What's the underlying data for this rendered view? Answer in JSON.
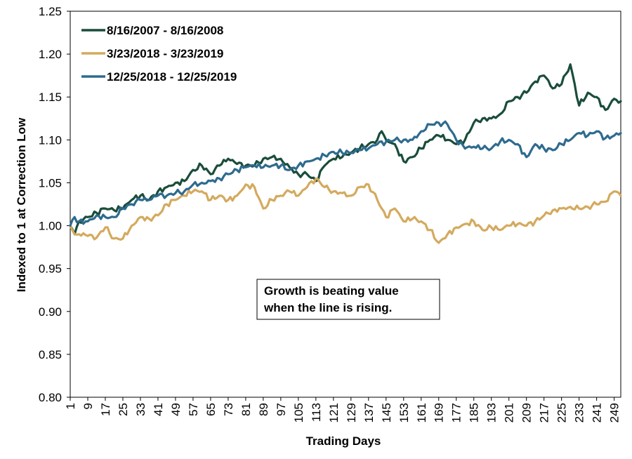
{
  "chart_data": {
    "type": "line",
    "xlabel": "Trading Days",
    "ylabel": "Indexed to 1 at Correction Low",
    "ylim": [
      0.8,
      1.25
    ],
    "xlim": [
      1,
      252
    ],
    "y_ticks": [
      "0.80",
      "0.85",
      "0.90",
      "0.95",
      "1.00",
      "1.05",
      "1.10",
      "1.15",
      "1.20",
      "1.25"
    ],
    "x_ticks": [
      "1",
      "9",
      "17",
      "25",
      "33",
      "41",
      "49",
      "57",
      "65",
      "73",
      "81",
      "89",
      "97",
      "105",
      "113",
      "121",
      "129",
      "137",
      "145",
      "153",
      "161",
      "169",
      "177",
      "185",
      "193",
      "201",
      "209",
      "217",
      "225",
      "233",
      "241",
      "249"
    ],
    "annotation": [
      "Growth is beating value",
      "when the line is rising."
    ],
    "legend_position": "top-left",
    "series": [
      {
        "name": "8/16/2007 - 8/16/2008",
        "color": "#1a4d3a",
        "points": [
          [
            1,
            1.0
          ],
          [
            3,
            0.99
          ],
          [
            5,
            1.005
          ],
          [
            9,
            1.01
          ],
          [
            13,
            1.015
          ],
          [
            17,
            1.02
          ],
          [
            21,
            1.018
          ],
          [
            25,
            1.02
          ],
          [
            29,
            1.03
          ],
          [
            33,
            1.035
          ],
          [
            37,
            1.03
          ],
          [
            41,
            1.04
          ],
          [
            45,
            1.045
          ],
          [
            49,
            1.05
          ],
          [
            53,
            1.052
          ],
          [
            57,
            1.065
          ],
          [
            61,
            1.07
          ],
          [
            65,
            1.06
          ],
          [
            69,
            1.07
          ],
          [
            73,
            1.078
          ],
          [
            77,
            1.072
          ],
          [
            81,
            1.07
          ],
          [
            85,
            1.07
          ],
          [
            89,
            1.078
          ],
          [
            93,
            1.08
          ],
          [
            97,
            1.078
          ],
          [
            101,
            1.068
          ],
          [
            105,
            1.06
          ],
          [
            109,
            1.06
          ],
          [
            113,
            1.052
          ],
          [
            117,
            1.07
          ],
          [
            121,
            1.078
          ],
          [
            125,
            1.08
          ],
          [
            129,
            1.085
          ],
          [
            133,
            1.09
          ],
          [
            137,
            1.095
          ],
          [
            141,
            1.1
          ],
          [
            143,
            1.11
          ],
          [
            145,
            1.1
          ],
          [
            149,
            1.095
          ],
          [
            153,
            1.075
          ],
          [
            157,
            1.08
          ],
          [
            161,
            1.09
          ],
          [
            165,
            1.1
          ],
          [
            169,
            1.105
          ],
          [
            173,
            1.1
          ],
          [
            177,
            1.095
          ],
          [
            181,
            1.1
          ],
          [
            185,
            1.12
          ],
          [
            189,
            1.125
          ],
          [
            193,
            1.125
          ],
          [
            197,
            1.13
          ],
          [
            201,
            1.145
          ],
          [
            205,
            1.15
          ],
          [
            209,
            1.155
          ],
          [
            213,
            1.168
          ],
          [
            217,
            1.175
          ],
          [
            221,
            1.16
          ],
          [
            225,
            1.165
          ],
          [
            229,
            1.188
          ],
          [
            233,
            1.14
          ],
          [
            237,
            1.155
          ],
          [
            241,
            1.15
          ],
          [
            245,
            1.135
          ],
          [
            249,
            1.148
          ],
          [
            252,
            1.145
          ]
        ]
      },
      {
        "name": "3/23/2018 - 3/23/2019",
        "color": "#d4aa5e",
        "points": [
          [
            1,
            1.0
          ],
          [
            3,
            0.99
          ],
          [
            5,
            0.99
          ],
          [
            9,
            0.988
          ],
          [
            13,
            0.986
          ],
          [
            17,
            0.998
          ],
          [
            21,
            0.985
          ],
          [
            25,
            0.985
          ],
          [
            29,
            1.0
          ],
          [
            33,
            1.01
          ],
          [
            37,
            1.008
          ],
          [
            41,
            1.012
          ],
          [
            45,
            1.025
          ],
          [
            49,
            1.03
          ],
          [
            53,
            1.035
          ],
          [
            57,
            1.04
          ],
          [
            61,
            1.04
          ],
          [
            65,
            1.03
          ],
          [
            69,
            1.035
          ],
          [
            73,
            1.03
          ],
          [
            77,
            1.035
          ],
          [
            81,
            1.048
          ],
          [
            85,
            1.045
          ],
          [
            89,
            1.02
          ],
          [
            93,
            1.03
          ],
          [
            97,
            1.035
          ],
          [
            101,
            1.04
          ],
          [
            105,
            1.035
          ],
          [
            109,
            1.045
          ],
          [
            113,
            1.055
          ],
          [
            117,
            1.045
          ],
          [
            121,
            1.04
          ],
          [
            125,
            1.038
          ],
          [
            129,
            1.035
          ],
          [
            133,
            1.045
          ],
          [
            137,
            1.048
          ],
          [
            141,
            1.03
          ],
          [
            145,
            1.01
          ],
          [
            149,
            1.02
          ],
          [
            153,
            1.005
          ],
          [
            157,
            1.008
          ],
          [
            161,
            1.005
          ],
          [
            165,
            0.995
          ],
          [
            169,
            0.98
          ],
          [
            173,
            0.99
          ],
          [
            177,
            0.998
          ],
          [
            181,
            1.002
          ],
          [
            185,
            1.005
          ],
          [
            189,
            0.995
          ],
          [
            193,
            0.998
          ],
          [
            197,
            0.995
          ],
          [
            201,
            1.0
          ],
          [
            205,
            1.002
          ],
          [
            209,
            1.0
          ],
          [
            213,
            1.005
          ],
          [
            217,
            1.012
          ],
          [
            221,
            1.018
          ],
          [
            225,
            1.02
          ],
          [
            229,
            1.022
          ],
          [
            233,
            1.02
          ],
          [
            237,
            1.022
          ],
          [
            241,
            1.025
          ],
          [
            245,
            1.028
          ],
          [
            249,
            1.04
          ],
          [
            252,
            1.035
          ]
        ]
      },
      {
        "name": "12/25/2018 - 12/25/2019",
        "color": "#2e6b8f",
        "points": [
          [
            1,
            1.0
          ],
          [
            3,
            1.01
          ],
          [
            5,
            1.005
          ],
          [
            9,
            1.005
          ],
          [
            13,
            1.012
          ],
          [
            17,
            1.01
          ],
          [
            21,
            1.01
          ],
          [
            25,
            1.02
          ],
          [
            29,
            1.025
          ],
          [
            33,
            1.03
          ],
          [
            37,
            1.03
          ],
          [
            41,
            1.035
          ],
          [
            45,
            1.035
          ],
          [
            49,
            1.038
          ],
          [
            53,
            1.04
          ],
          [
            57,
            1.048
          ],
          [
            61,
            1.05
          ],
          [
            65,
            1.052
          ],
          [
            69,
            1.055
          ],
          [
            73,
            1.06
          ],
          [
            77,
            1.065
          ],
          [
            81,
            1.068
          ],
          [
            85,
            1.07
          ],
          [
            89,
            1.068
          ],
          [
            93,
            1.07
          ],
          [
            97,
            1.07
          ],
          [
            101,
            1.065
          ],
          [
            105,
            1.07
          ],
          [
            109,
            1.075
          ],
          [
            113,
            1.078
          ],
          [
            117,
            1.082
          ],
          [
            121,
            1.086
          ],
          [
            125,
            1.085
          ],
          [
            129,
            1.085
          ],
          [
            133,
            1.088
          ],
          [
            137,
            1.09
          ],
          [
            141,
            1.095
          ],
          [
            145,
            1.098
          ],
          [
            149,
            1.1
          ],
          [
            153,
            1.1
          ],
          [
            157,
            1.1
          ],
          [
            161,
            1.11
          ],
          [
            165,
            1.118
          ],
          [
            169,
            1.12
          ],
          [
            173,
            1.118
          ],
          [
            177,
            1.1
          ],
          [
            181,
            1.09
          ],
          [
            185,
            1.092
          ],
          [
            189,
            1.09
          ],
          [
            193,
            1.09
          ],
          [
            197,
            1.098
          ],
          [
            201,
            1.1
          ],
          [
            205,
            1.095
          ],
          [
            209,
            1.08
          ],
          [
            213,
            1.095
          ],
          [
            217,
            1.09
          ],
          [
            221,
            1.088
          ],
          [
            225,
            1.095
          ],
          [
            229,
            1.1
          ],
          [
            233,
            1.108
          ],
          [
            237,
            1.105
          ],
          [
            241,
            1.11
          ],
          [
            245,
            1.102
          ],
          [
            249,
            1.105
          ],
          [
            252,
            1.108
          ]
        ]
      }
    ]
  }
}
